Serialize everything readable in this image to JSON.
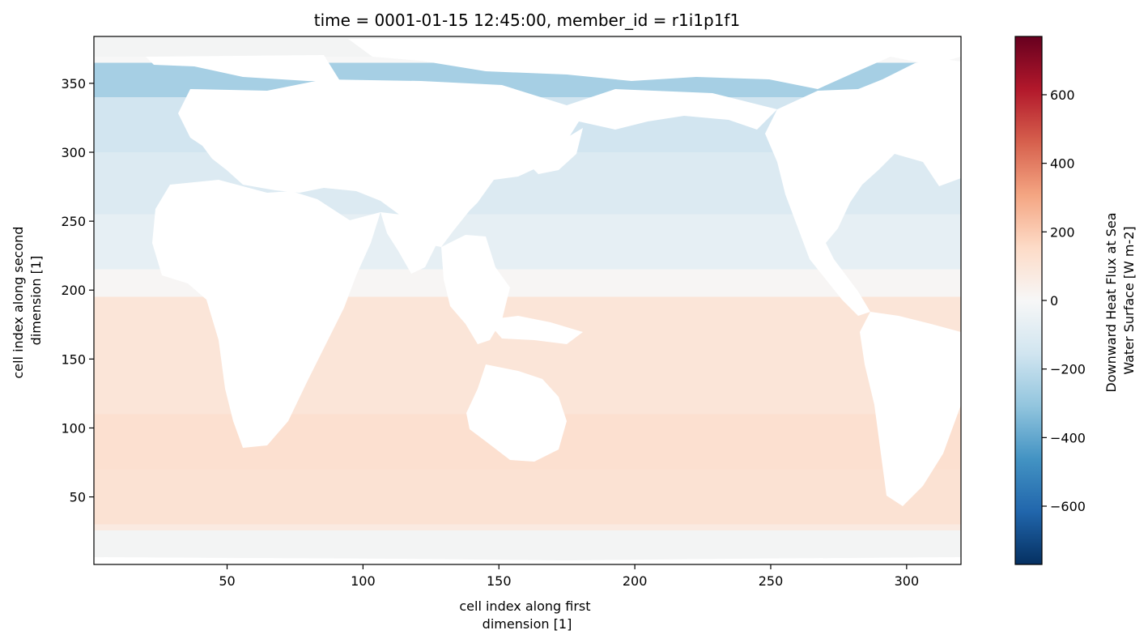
{
  "chart_data": {
    "type": "heatmap",
    "title": "time = 0001-01-15 12:45:00, member_id = r1i1p1f1",
    "xlabel_lines": [
      "cell index along first",
      "dimension [1]"
    ],
    "ylabel_lines": [
      "cell index along second",
      "dimension [1]"
    ],
    "colorbar_label_lines": [
      "Downward Heat Flux at Sea",
      "Water Surface [W m-2]"
    ],
    "colormap": "RdBu_r",
    "xlim": [
      1,
      320
    ],
    "ylim": [
      1,
      384
    ],
    "vmin": -770,
    "vmax": 770,
    "x_ticks": [
      {
        "value": 50,
        "label": "50"
      },
      {
        "value": 100,
        "label": "100"
      },
      {
        "value": 150,
        "label": "150"
      },
      {
        "value": 200,
        "label": "200"
      },
      {
        "value": 250,
        "label": "250"
      },
      {
        "value": 300,
        "label": "300"
      }
    ],
    "y_ticks": [
      {
        "value": 50,
        "label": "50"
      },
      {
        "value": 100,
        "label": "100"
      },
      {
        "value": 150,
        "label": "150"
      },
      {
        "value": 200,
        "label": "200"
      },
      {
        "value": 250,
        "label": "250"
      },
      {
        "value": 300,
        "label": "300"
      },
      {
        "value": 350,
        "label": "350"
      }
    ],
    "colorbar_ticks": [
      {
        "value": -600,
        "label": "−600"
      },
      {
        "value": -400,
        "label": "−400"
      },
      {
        "value": -200,
        "label": "−200"
      },
      {
        "value": 0,
        "label": "0"
      },
      {
        "value": 200,
        "label": "200"
      },
      {
        "value": 400,
        "label": "400"
      },
      {
        "value": 600,
        "label": "600"
      }
    ],
    "colorbar_stops": [
      {
        "value": -770,
        "color": "#053061"
      },
      {
        "value": -616,
        "color": "#2166ac"
      },
      {
        "value": -462,
        "color": "#4393c3"
      },
      {
        "value": -308,
        "color": "#92c5de"
      },
      {
        "value": -154,
        "color": "#d1e5f0"
      },
      {
        "value": 0,
        "color": "#f7f7f7"
      },
      {
        "value": 154,
        "color": "#fddbc7"
      },
      {
        "value": 308,
        "color": "#f4a582"
      },
      {
        "value": 462,
        "color": "#d6604d"
      },
      {
        "value": 616,
        "color": "#b2182b"
      },
      {
        "value": 770,
        "color": "#67001f"
      }
    ],
    "field_bands": [
      {
        "y": [
          1,
          18
        ],
        "value": 0
      },
      {
        "y": [
          18,
          30
        ],
        "value": 70
      },
      {
        "y": [
          30,
          70
        ],
        "value": 115
      },
      {
        "y": [
          70,
          110
        ],
        "value": 125
      },
      {
        "y": [
          110,
          195
        ],
        "value": 100
      },
      {
        "y": [
          195,
          215
        ],
        "value": 10
      },
      {
        "y": [
          215,
          255
        ],
        "value": -70
      },
      {
        "y": [
          255,
          300
        ],
        "value": -110
      },
      {
        "y": [
          300,
          340
        ],
        "value": -150
      },
      {
        "y": [
          340,
          365
        ],
        "value": -260
      },
      {
        "y": [
          365,
          384
        ],
        "value": 0
      }
    ],
    "land_color": "#ffffff",
    "missing_color": "#f3f4f4"
  }
}
